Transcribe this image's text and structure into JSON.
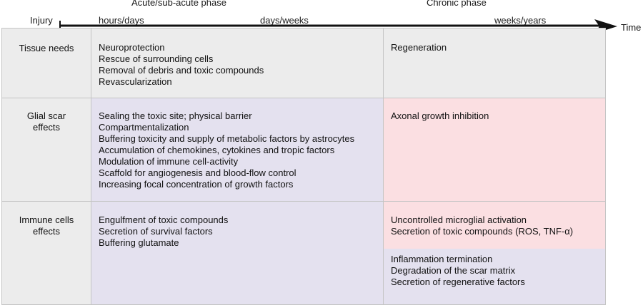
{
  "timeline": {
    "injury": "Injury",
    "acute_phase": "Acute/sub-acute phase",
    "chronic_phase": "Chronic phase",
    "hours_days": "hours/days",
    "days_weeks": "days/weeks",
    "weeks_years": "weeks/years",
    "time": "Time"
  },
  "rows": {
    "tissue_needs": {
      "label": "Tissue needs",
      "acute": [
        "Neuroprotection",
        "Rescue of surrounding cells",
        "Removal of debris and toxic compounds",
        "Revascularization"
      ],
      "chronic": [
        "Regeneration"
      ]
    },
    "glial_scar": {
      "label_line1": "Glial scar",
      "label_line2": "effects",
      "acute": [
        "Sealing the toxic site; physical barrier",
        "Compartmentalization",
        "Buffering toxicity and supply of metabolic factors by astrocytes",
        "Accumulation of chemokines, cytokines and tropic factors",
        "Modulation of immune cell-activity",
        "Scaffold for angiogenesis and blood-flow control",
        "Increasing focal concentration of growth factors"
      ],
      "chronic": [
        "Axonal growth inhibition"
      ]
    },
    "immune_cells": {
      "label_line1": "Immune cells",
      "label_line2": "effects",
      "acute": [
        "Engulfment of toxic compounds",
        "Secretion of survival factors",
        "Buffering glutamate"
      ],
      "chronic_harmful": [
        "Uncontrolled microglial activation",
        "Secretion of toxic compounds (ROS, TNF-α)"
      ],
      "chronic_beneficial": [
        "Inflammation termination",
        "Degradation of the scar matrix",
        "Secretion of regenerative factors"
      ]
    }
  },
  "colors": {
    "grey": "#ececec",
    "beneficial": "#e4e1ef",
    "harmful": "#fbdfe2",
    "border": "#c4c4c4"
  }
}
